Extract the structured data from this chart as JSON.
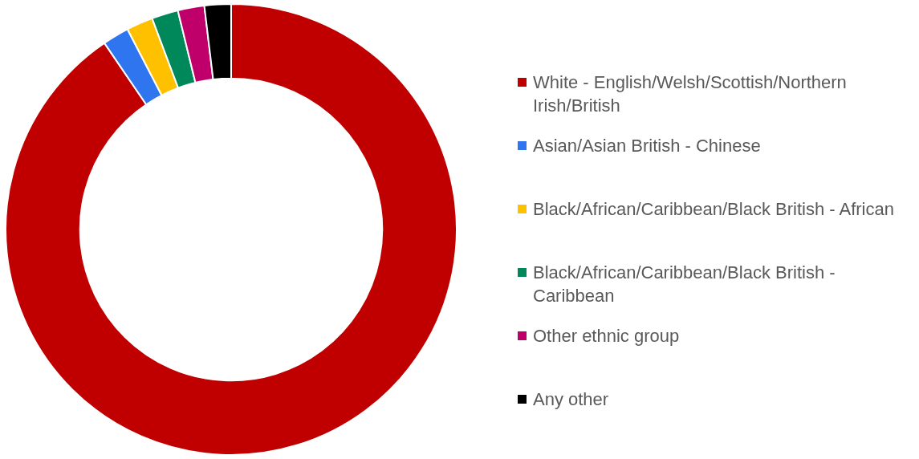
{
  "chart_data": {
    "type": "donut",
    "categories": [
      "White - English/Welsh/Scottish/Northern Irish/British",
      "Asian/Asian British - Chinese",
      "Black/African/Caribbean/Black British - African",
      "Black/African/Caribbean/Black British - Caribbean",
      "Other ethnic group",
      "Any other"
    ],
    "values": [
      90.5,
      1.9,
      1.9,
      1.9,
      1.9,
      1.9
    ],
    "colors": [
      "#c00000",
      "#2f75f0",
      "#ffc000",
      "#00875a",
      "#c0006a",
      "#000000"
    ],
    "legend": "right"
  }
}
